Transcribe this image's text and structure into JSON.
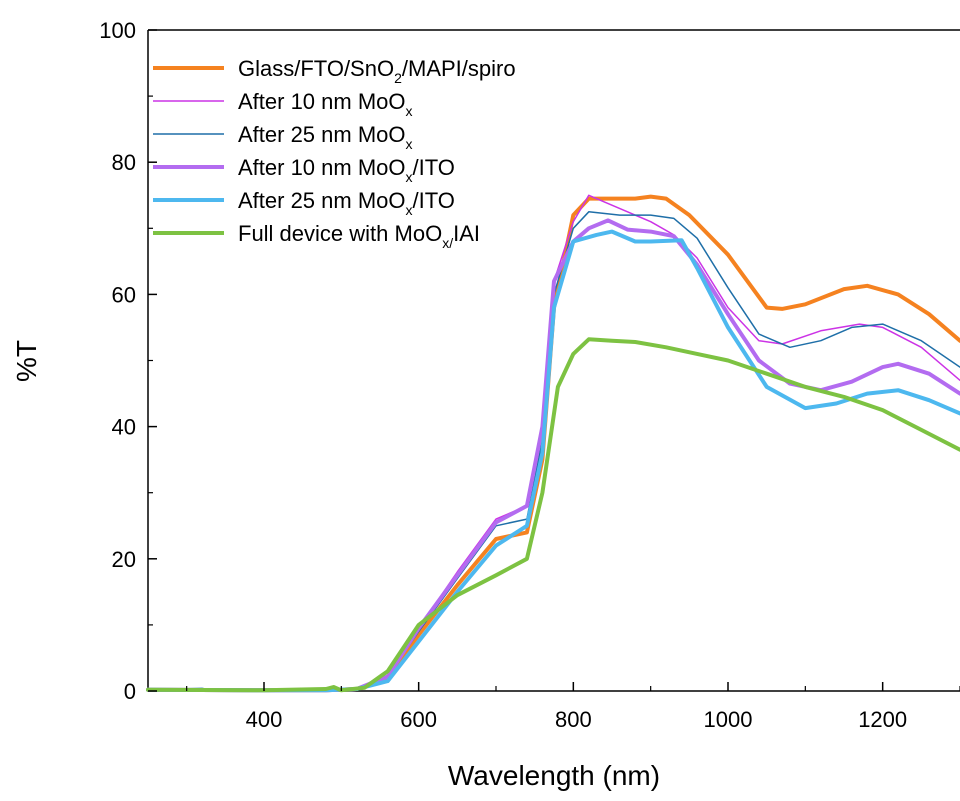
{
  "chart_data": {
    "type": "line",
    "title": "",
    "xlabel": "Wavelength (nm)",
    "ylabel": "%T",
    "xlim": [
      250,
      1300
    ],
    "ylim": [
      0,
      100
    ],
    "x_ticks": [
      400,
      600,
      800,
      1000,
      1200
    ],
    "y_ticks": [
      0,
      20,
      40,
      60,
      80,
      100
    ],
    "x_tick_labels": [
      "400",
      "600",
      "800",
      "1000",
      "1200"
    ],
    "y_tick_labels": [
      "0",
      "20",
      "40",
      "60",
      "80",
      "100"
    ],
    "grid": false,
    "legend_position": "top-left",
    "legend_rows": [
      {
        "pre": "Glass/FTO/SnO",
        "sub": "2",
        "post": "/MAPI/spiro"
      },
      {
        "pre": "After 10 nm MoO",
        "sub": "x",
        "post": ""
      },
      {
        "pre": "After 25 nm MoO",
        "sub": "x",
        "post": ""
      },
      {
        "pre": "After 10 nm MoO",
        "sub": "x",
        "post": "/ITO"
      },
      {
        "pre": "After 25 nm MoO",
        "sub": "x",
        "post": "/ITO"
      },
      {
        "pre": "Full device with MoO",
        "sub": "x/",
        "post": "IAI"
      }
    ],
    "series": [
      {
        "name": "Glass/FTO/SnO2/MAPI/spiro",
        "color": "#f58220",
        "stroke_width": 4,
        "points": [
          [
            250,
            0.2
          ],
          [
            400,
            0.1
          ],
          [
            480,
            0.1
          ],
          [
            520,
            0.3
          ],
          [
            560,
            2
          ],
          [
            600,
            8.5
          ],
          [
            650,
            16
          ],
          [
            700,
            23
          ],
          [
            740,
            24
          ],
          [
            760,
            35
          ],
          [
            775,
            58
          ],
          [
            800,
            72
          ],
          [
            820,
            74.5
          ],
          [
            850,
            74.5
          ],
          [
            880,
            74.5
          ],
          [
            900,
            74.8
          ],
          [
            920,
            74.5
          ],
          [
            950,
            72
          ],
          [
            1000,
            66
          ],
          [
            1050,
            58
          ],
          [
            1070,
            57.8
          ],
          [
            1100,
            58.5
          ],
          [
            1150,
            60.8
          ],
          [
            1180,
            61.3
          ],
          [
            1220,
            60
          ],
          [
            1260,
            57
          ],
          [
            1300,
            53
          ]
        ]
      },
      {
        "name": "After 10 nm MoOx",
        "color": "#cc33e6",
        "stroke_width": 1.5,
        "points": [
          [
            250,
            0.2
          ],
          [
            400,
            0.1
          ],
          [
            480,
            0.1
          ],
          [
            520,
            0.3
          ],
          [
            560,
            2.2
          ],
          [
            600,
            9.5
          ],
          [
            650,
            18
          ],
          [
            700,
            26
          ],
          [
            740,
            28
          ],
          [
            760,
            40
          ],
          [
            775,
            62
          ],
          [
            800,
            71
          ],
          [
            820,
            75
          ],
          [
            840,
            74
          ],
          [
            870,
            72.5
          ],
          [
            900,
            71
          ],
          [
            930,
            69
          ],
          [
            960,
            65.5
          ],
          [
            1000,
            58
          ],
          [
            1040,
            53
          ],
          [
            1070,
            52.5
          ],
          [
            1120,
            54.5
          ],
          [
            1170,
            55.5
          ],
          [
            1200,
            55
          ],
          [
            1250,
            52
          ],
          [
            1300,
            47
          ]
        ]
      },
      {
        "name": "After 25 nm MoOx",
        "color": "#1f6fa8",
        "stroke_width": 1.5,
        "points": [
          [
            250,
            0.2
          ],
          [
            320,
            0.4
          ],
          [
            330,
            0.2
          ],
          [
            400,
            0.1
          ],
          [
            480,
            0.1
          ],
          [
            520,
            0.3
          ],
          [
            560,
            2.2
          ],
          [
            600,
            9
          ],
          [
            650,
            17
          ],
          [
            700,
            25
          ],
          [
            740,
            26
          ],
          [
            760,
            38
          ],
          [
            775,
            60
          ],
          [
            800,
            70
          ],
          [
            820,
            72.5
          ],
          [
            860,
            72
          ],
          [
            900,
            72
          ],
          [
            930,
            71.5
          ],
          [
            960,
            68.5
          ],
          [
            1000,
            61
          ],
          [
            1040,
            54
          ],
          [
            1080,
            52
          ],
          [
            1120,
            53
          ],
          [
            1160,
            55
          ],
          [
            1200,
            55.5
          ],
          [
            1250,
            53
          ],
          [
            1300,
            49
          ]
        ]
      },
      {
        "name": "After 10 nm MoOx/ITO",
        "color": "#b36cf0",
        "stroke_width": 4,
        "points": [
          [
            250,
            0.2
          ],
          [
            400,
            0.1
          ],
          [
            480,
            0.1
          ],
          [
            520,
            0.3
          ],
          [
            560,
            2.2
          ],
          [
            600,
            9.5
          ],
          [
            650,
            17.5
          ],
          [
            700,
            25.5
          ],
          [
            740,
            28
          ],
          [
            760,
            40
          ],
          [
            775,
            62
          ],
          [
            800,
            68
          ],
          [
            820,
            70
          ],
          [
            845,
            71.2
          ],
          [
            870,
            69.8
          ],
          [
            900,
            69.5
          ],
          [
            930,
            68.8
          ],
          [
            960,
            64.5
          ],
          [
            1000,
            57
          ],
          [
            1040,
            50
          ],
          [
            1080,
            46.5
          ],
          [
            1120,
            45.5
          ],
          [
            1160,
            46.8
          ],
          [
            1200,
            49
          ],
          [
            1220,
            49.5
          ],
          [
            1260,
            48
          ],
          [
            1300,
            45
          ]
        ]
      },
      {
        "name": "After 25 nm MoOx/ITO",
        "color": "#4db8ef",
        "stroke_width": 4,
        "points": [
          [
            250,
            0.2
          ],
          [
            400,
            0.1
          ],
          [
            480,
            0.1
          ],
          [
            520,
            0.3
          ],
          [
            560,
            1.5
          ],
          [
            600,
            7.5
          ],
          [
            650,
            15
          ],
          [
            700,
            22
          ],
          [
            740,
            25
          ],
          [
            760,
            36
          ],
          [
            775,
            58
          ],
          [
            800,
            68
          ],
          [
            830,
            69
          ],
          [
            850,
            69.5
          ],
          [
            880,
            68
          ],
          [
            900,
            68
          ],
          [
            940,
            68.2
          ],
          [
            960,
            64
          ],
          [
            1000,
            55
          ],
          [
            1050,
            46
          ],
          [
            1100,
            42.8
          ],
          [
            1140,
            43.5
          ],
          [
            1180,
            45
          ],
          [
            1220,
            45.5
          ],
          [
            1260,
            44
          ],
          [
            1300,
            42
          ]
        ]
      },
      {
        "name": "Full device with MoOx/IAI",
        "color": "#7dc242",
        "stroke_width": 4,
        "points": [
          [
            250,
            0.2
          ],
          [
            400,
            0.1
          ],
          [
            480,
            0.3
          ],
          [
            490,
            0.6
          ],
          [
            500,
            0.1
          ],
          [
            530,
            0.5
          ],
          [
            560,
            3
          ],
          [
            600,
            10
          ],
          [
            650,
            14.5
          ],
          [
            700,
            17.5
          ],
          [
            740,
            20
          ],
          [
            760,
            30
          ],
          [
            780,
            46
          ],
          [
            800,
            51
          ],
          [
            820,
            53.2
          ],
          [
            850,
            53
          ],
          [
            880,
            52.8
          ],
          [
            920,
            52
          ],
          [
            960,
            51
          ],
          [
            1000,
            50
          ],
          [
            1050,
            48
          ],
          [
            1100,
            46
          ],
          [
            1150,
            44.5
          ],
          [
            1200,
            42.5
          ],
          [
            1250,
            39.5
          ],
          [
            1300,
            36.5
          ]
        ]
      }
    ]
  }
}
